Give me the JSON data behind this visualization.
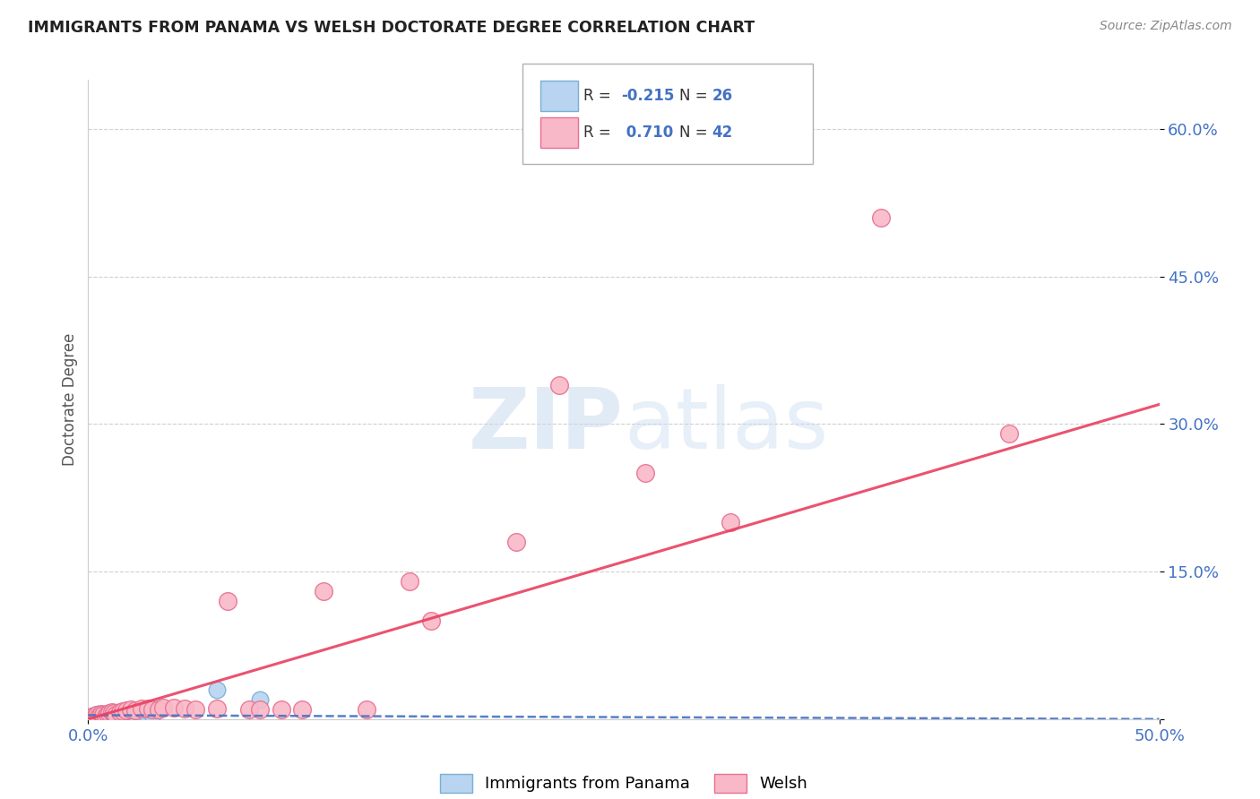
{
  "title": "IMMIGRANTS FROM PANAMA VS WELSH DOCTORATE DEGREE CORRELATION CHART",
  "source": "Source: ZipAtlas.com",
  "ylabel": "Doctorate Degree",
  "xlim": [
    0.0,
    0.5
  ],
  "ylim": [
    0.0,
    0.65
  ],
  "yticks": [
    0.0,
    0.15,
    0.3,
    0.45,
    0.6
  ],
  "ytick_labels": [
    "",
    "15.0%",
    "30.0%",
    "45.0%",
    "60.0%"
  ],
  "panama_r": -0.215,
  "panama_n": 26,
  "welsh_r": 0.71,
  "welsh_n": 42,
  "panama_color": "#b8d4f0",
  "panama_edge": "#7aafd4",
  "welsh_color": "#f9b8c8",
  "welsh_edge": "#e87090",
  "panama_line_color": "#4472c4",
  "welsh_line_color": "#e84060",
  "panama_x": [
    0.001,
    0.002,
    0.003,
    0.004,
    0.005,
    0.006,
    0.007,
    0.008,
    0.009,
    0.01,
    0.011,
    0.012,
    0.013,
    0.014,
    0.015,
    0.016,
    0.017,
    0.018,
    0.019,
    0.02,
    0.022,
    0.025,
    0.028,
    0.03,
    0.06,
    0.08
  ],
  "panama_y": [
    0.003,
    0.002,
    0.004,
    0.003,
    0.005,
    0.003,
    0.004,
    0.002,
    0.003,
    0.005,
    0.004,
    0.003,
    0.002,
    0.004,
    0.003,
    0.002,
    0.003,
    0.004,
    0.002,
    0.003,
    0.004,
    0.003,
    0.002,
    0.004,
    0.03,
    0.02
  ],
  "welsh_x": [
    0.001,
    0.002,
    0.003,
    0.004,
    0.005,
    0.006,
    0.007,
    0.008,
    0.009,
    0.01,
    0.011,
    0.012,
    0.013,
    0.015,
    0.016,
    0.018,
    0.02,
    0.022,
    0.025,
    0.028,
    0.03,
    0.033,
    0.035,
    0.04,
    0.045,
    0.05,
    0.06,
    0.065,
    0.075,
    0.08,
    0.09,
    0.1,
    0.11,
    0.13,
    0.15,
    0.16,
    0.2,
    0.22,
    0.26,
    0.3,
    0.37,
    0.43
  ],
  "welsh_y": [
    0.002,
    0.003,
    0.003,
    0.004,
    0.003,
    0.005,
    0.004,
    0.003,
    0.005,
    0.006,
    0.007,
    0.006,
    0.004,
    0.007,
    0.008,
    0.009,
    0.01,
    0.009,
    0.011,
    0.011,
    0.01,
    0.01,
    0.012,
    0.012,
    0.011,
    0.01,
    0.011,
    0.12,
    0.01,
    0.01,
    0.01,
    0.01,
    0.13,
    0.01,
    0.14,
    0.1,
    0.18,
    0.34,
    0.25,
    0.2,
    0.51,
    0.29
  ],
  "legend_panama_label": "Immigrants from Panama",
  "legend_welsh_label": "Welsh",
  "watermark_zip": "ZIP",
  "watermark_atlas": "atlas",
  "title_color": "#222222",
  "tick_color": "#4472c4",
  "grid_color": "#d0d0d0",
  "background_color": "#ffffff"
}
